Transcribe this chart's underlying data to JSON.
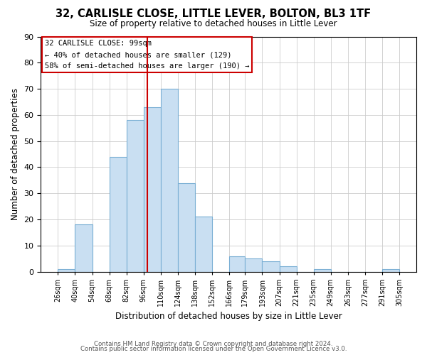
{
  "title": "32, CARLISLE CLOSE, LITTLE LEVER, BOLTON, BL3 1TF",
  "subtitle": "Size of property relative to detached houses in Little Lever",
  "xlabel": "Distribution of detached houses by size in Little Lever",
  "ylabel": "Number of detached properties",
  "bar_edges": [
    26,
    40,
    54,
    68,
    82,
    96,
    110,
    124,
    138,
    152,
    166,
    179,
    193,
    207,
    221,
    235,
    249,
    263,
    277,
    291,
    305
  ],
  "bar_heights": [
    1,
    18,
    0,
    44,
    58,
    63,
    70,
    34,
    21,
    0,
    6,
    5,
    4,
    2,
    0,
    1,
    0,
    0,
    0,
    1
  ],
  "bar_color": "#c9dff2",
  "bar_edge_color": "#7aafd4",
  "vline_x": 99,
  "vline_color": "#cc0000",
  "ylim": [
    0,
    90
  ],
  "yticks": [
    0,
    10,
    20,
    30,
    40,
    50,
    60,
    70,
    80,
    90
  ],
  "annotation_title": "32 CARLISLE CLOSE: 99sqm",
  "annotation_line1": "← 40% of detached houses are smaller (129)",
  "annotation_line2": "58% of semi-detached houses are larger (190) →",
  "footer1": "Contains HM Land Registry data © Crown copyright and database right 2024.",
  "footer2": "Contains public sector information licensed under the Open Government Licence v3.0.",
  "background_color": "#ffffff",
  "grid_color": "#cccccc"
}
